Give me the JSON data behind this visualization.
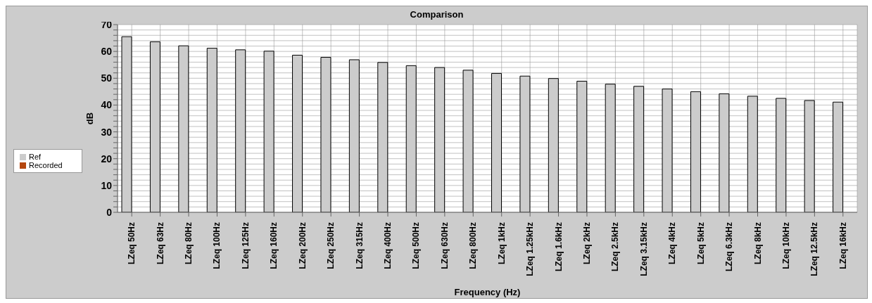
{
  "chart_data": {
    "type": "bar",
    "title": "Comparison",
    "xlabel": "Frequency (Hz)",
    "ylabel": "dB",
    "categories": [
      "LZeq 50Hz",
      "LZeq 63Hz",
      "LZeq 80Hz",
      "LZeq 100Hz",
      "LZeq 125Hz",
      "LZeq 160Hz",
      "LZeq 200Hz",
      "LZeq 250Hz",
      "LZeq 315Hz",
      "LZeq 400Hz",
      "LZeq 500Hz",
      "LZeq 630Hz",
      "LZeq 800Hz",
      "LZeq 1kHz",
      "LZeq 1.25kHz",
      "LZeq 1.6kHz",
      "LZeq 2kHz",
      "LZeq 2.5kHz",
      "LZeq 3.15kHz",
      "LZeq 4kHz",
      "LZeq 5kHz",
      "LZeq 6.3kHz",
      "LZeq 8kHz",
      "LZeq 10kHz",
      "LZeq 12.5kHz",
      "LZeq 16kHz"
    ],
    "series": [
      {
        "name": "Ref",
        "color": "#cccccc",
        "values": [
          65.5,
          63.6,
          62.1,
          61.2,
          60.6,
          60.1,
          58.6,
          57.8,
          56.9,
          55.9,
          54.7,
          54.0,
          53.0,
          51.8,
          50.8,
          49.9,
          48.9,
          47.8,
          47.0,
          46.0,
          45.0,
          44.2,
          43.3,
          42.5,
          41.7,
          41.1
        ]
      },
      {
        "name": "Recorded",
        "color": "#b5470f",
        "values": [
          null,
          null,
          null,
          null,
          null,
          null,
          null,
          null,
          null,
          null,
          null,
          null,
          null,
          null,
          null,
          null,
          null,
          null,
          null,
          null,
          null,
          null,
          null,
          null,
          null,
          null
        ]
      }
    ],
    "ylim": [
      0,
      70
    ],
    "yticks": [
      0,
      {
        "value": 2,
        "label": null
      },
      {
        "value": 4,
        "label": null
      },
      {
        "value": 6,
        "label": null
      },
      {
        "value": 8,
        "label": null
      },
      10,
      {
        "value": 12,
        "label": null
      },
      {
        "value": 14,
        "label": null
      },
      {
        "value": 16,
        "label": null
      },
      {
        "value": 18,
        "label": null
      },
      20,
      {
        "value": 22,
        "label": null
      },
      {
        "value": 24,
        "label": null
      },
      {
        "value": 26,
        "label": null
      },
      {
        "value": 28,
        "label": null
      },
      30,
      {
        "value": 32,
        "label": null
      },
      {
        "value": 34,
        "label": null
      },
      {
        "value": 36,
        "label": null
      },
      {
        "value": 38,
        "label": null
      },
      40,
      {
        "value": 42,
        "label": null
      },
      {
        "value": 44,
        "label": null
      },
      {
        "value": 46,
        "label": null
      },
      {
        "value": 48,
        "label": null
      },
      50,
      {
        "value": 52,
        "label": null
      },
      {
        "value": 54,
        "label": null
      },
      {
        "value": 56,
        "label": null
      },
      {
        "value": 58,
        "label": null
      },
      60,
      {
        "value": 62,
        "label": null
      },
      {
        "value": 64,
        "label": null
      },
      {
        "value": 66,
        "label": null
      },
      {
        "value": 68,
        "label": null
      },
      70
    ],
    "grid": true,
    "legend": "left"
  }
}
